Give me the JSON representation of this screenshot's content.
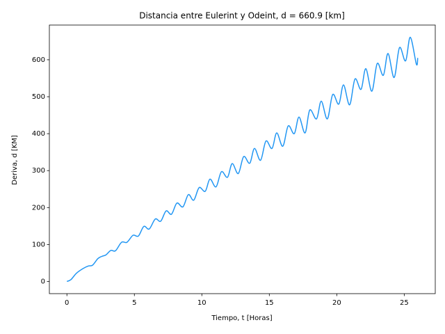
{
  "chart_data": {
    "type": "line",
    "title": "Distancia entre Eulerint y Odeint, d = 660.9 [km]",
    "x_label": "Tiempo, t [Horas]",
    "y_label": "Deriva, d [KM]",
    "x": [
      0,
      0.3,
      0.7,
      1.2,
      1.6,
      1.9,
      2.3,
      2.6,
      2.9,
      3.25,
      3.6,
      4.05,
      4.45,
      4.9,
      5.3,
      5.7,
      6.1,
      6.55,
      6.95,
      7.35,
      7.75,
      8.15,
      8.6,
      9.0,
      9.4,
      9.8,
      10.25,
      10.6,
      11.05,
      11.45,
      11.9,
      12.25,
      12.7,
      13.1,
      13.55,
      13.9,
      14.35,
      14.75,
      15.2,
      15.55,
      16.0,
      16.4,
      16.85,
      17.2,
      17.65,
      18.0,
      18.5,
      18.85,
      19.3,
      19.7,
      20.15,
      20.5,
      20.95,
      21.35,
      21.8,
      22.15,
      22.6,
      23.0,
      23.45,
      23.8,
      24.25,
      24.65,
      25.1,
      25.45,
      25.9,
      26.0
    ],
    "series": [
      {
        "color": "#2196f3",
        "values": [
          0,
          5,
          22,
          35,
          42,
          44,
          62,
          68,
          72,
          84,
          83,
          106,
          106,
          125,
          123,
          149,
          142,
          169,
          163,
          191,
          182,
          212,
          202,
          235,
          220,
          254,
          244,
          277,
          256,
          297,
          282,
          319,
          292,
          338,
          320,
          360,
          328,
          380,
          360,
          402,
          366,
          421,
          400,
          445,
          402,
          464,
          440,
          488,
          440,
          506,
          480,
          532,
          478,
          548,
          520,
          576,
          515,
          590,
          558,
          617,
          552,
          633,
          597,
          660.9,
          588,
          605
        ]
      }
    ],
    "xlim": [
      -1.3,
      27.3
    ],
    "ylim": [
      -33,
      694
    ],
    "xticks": [
      0,
      5,
      10,
      15,
      20,
      25
    ],
    "yticks": [
      0,
      100,
      200,
      300,
      400,
      500,
      600
    ],
    "grid": false
  }
}
